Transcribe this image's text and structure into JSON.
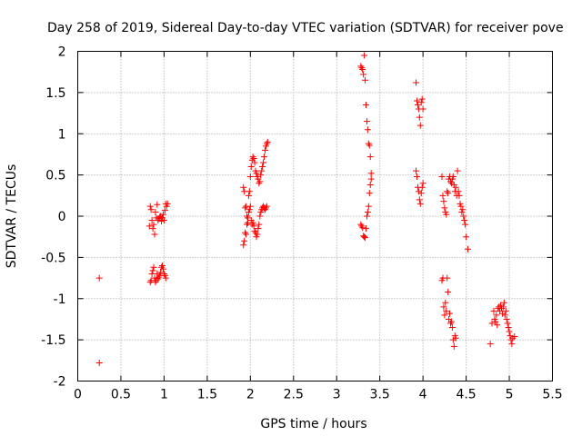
{
  "chart_data": {
    "type": "scatter",
    "title": "Day 258 of 2019, Sidereal Day-to-day VTEC variation (SDTVAR) for receiver pove",
    "xlabel": "GPS time / hours",
    "ylabel": "SDTVAR / TECUs",
    "xlim": [
      0,
      5.5
    ],
    "ylim": [
      -2,
      2
    ],
    "xticks": [
      0,
      0.5,
      1,
      1.5,
      2,
      2.5,
      3,
      3.5,
      4,
      4.5,
      5,
      5.5
    ],
    "xtick_labels": [
      "0",
      "0.5",
      "1",
      "1.5",
      "2",
      "2.5",
      "3",
      "3.5",
      "4",
      "4.5",
      "5",
      "5.5"
    ],
    "yticks": [
      -2,
      -1.5,
      -1,
      -0.5,
      0,
      0.5,
      1,
      1.5,
      2
    ],
    "ytick_labels": [
      "-2",
      "-1.5",
      "-1",
      "-0.5",
      "0",
      "0.5",
      "1",
      "1.5",
      "2"
    ],
    "grid": true,
    "marker": "+",
    "series": [
      {
        "name": "SDTVAR",
        "color": "#ff0000",
        "points": [
          [
            0.25,
            -0.75
          ],
          [
            0.25,
            -1.78
          ],
          [
            0.83,
            -0.12
          ],
          [
            0.84,
            0.12
          ],
          [
            0.85,
            0.08
          ],
          [
            0.86,
            -0.05
          ],
          [
            0.87,
            -0.15
          ],
          [
            0.88,
            -0.1
          ],
          [
            0.89,
            -0.22
          ],
          [
            0.9,
            0.05
          ],
          [
            0.91,
            -0.02
          ],
          [
            0.92,
            0.14
          ],
          [
            0.93,
            -0.05
          ],
          [
            0.94,
            -0.03
          ],
          [
            0.95,
            -0.01
          ],
          [
            0.96,
            0.0
          ],
          [
            0.97,
            -0.06
          ],
          [
            0.98,
            -0.02
          ],
          [
            0.99,
            0.02
          ],
          [
            1.0,
            -0.05
          ],
          [
            1.01,
            0.07
          ],
          [
            1.02,
            0.15
          ],
          [
            1.03,
            0.12
          ],
          [
            1.04,
            0.15
          ],
          [
            0.84,
            -0.8
          ],
          [
            0.85,
            -0.78
          ],
          [
            0.86,
            -0.7
          ],
          [
            0.87,
            -0.66
          ],
          [
            0.88,
            -0.62
          ],
          [
            0.89,
            -0.75
          ],
          [
            0.9,
            -0.8
          ],
          [
            0.91,
            -0.78
          ],
          [
            0.92,
            -0.7
          ],
          [
            0.93,
            -0.76
          ],
          [
            0.94,
            -0.74
          ],
          [
            0.95,
            -0.72
          ],
          [
            0.96,
            -0.68
          ],
          [
            0.97,
            -0.62
          ],
          [
            0.98,
            -0.6
          ],
          [
            0.99,
            -0.64
          ],
          [
            1.0,
            -0.7
          ],
          [
            1.01,
            -0.72
          ],
          [
            1.02,
            -0.75
          ],
          [
            1.92,
            0.35
          ],
          [
            1.93,
            0.3
          ],
          [
            1.94,
            0.1
          ],
          [
            1.95,
            0.12
          ],
          [
            1.96,
            0.0
          ],
          [
            1.97,
            -0.08
          ],
          [
            1.98,
            0.25
          ],
          [
            1.99,
            0.3
          ],
          [
            2.0,
            0.48
          ],
          [
            2.01,
            0.6
          ],
          [
            2.02,
            0.68
          ],
          [
            2.03,
            0.72
          ],
          [
            2.04,
            0.7
          ],
          [
            2.05,
            0.65
          ],
          [
            2.06,
            0.55
          ],
          [
            2.07,
            0.52
          ],
          [
            2.08,
            0.48
          ],
          [
            2.09,
            0.45
          ],
          [
            2.1,
            0.4
          ],
          [
            2.11,
            0.42
          ],
          [
            2.12,
            0.5
          ],
          [
            2.13,
            0.55
          ],
          [
            2.14,
            0.6
          ],
          [
            2.15,
            0.65
          ],
          [
            2.16,
            0.72
          ],
          [
            2.17,
            0.8
          ],
          [
            2.18,
            0.85
          ],
          [
            2.19,
            0.88
          ],
          [
            2.2,
            0.9
          ],
          [
            1.92,
            -0.35
          ],
          [
            1.93,
            -0.3
          ],
          [
            1.94,
            -0.2
          ],
          [
            1.95,
            -0.22
          ],
          [
            1.96,
            -0.1
          ],
          [
            1.97,
            -0.02
          ],
          [
            1.98,
            0.05
          ],
          [
            1.99,
            0.08
          ],
          [
            2.0,
            0.12
          ],
          [
            2.01,
            -0.05
          ],
          [
            2.02,
            -0.1
          ],
          [
            2.03,
            -0.08
          ],
          [
            2.04,
            -0.12
          ],
          [
            2.05,
            -0.18
          ],
          [
            2.06,
            -0.2
          ],
          [
            2.07,
            -0.25
          ],
          [
            2.08,
            -0.22
          ],
          [
            2.09,
            -0.15
          ],
          [
            2.1,
            -0.1
          ],
          [
            2.11,
            0.0
          ],
          [
            2.12,
            0.05
          ],
          [
            2.13,
            0.08
          ],
          [
            2.14,
            0.1
          ],
          [
            2.15,
            0.12
          ],
          [
            2.16,
            0.1
          ],
          [
            2.17,
            0.08
          ],
          [
            2.18,
            0.1
          ],
          [
            2.19,
            0.12
          ],
          [
            3.28,
            1.82
          ],
          [
            3.29,
            1.8
          ],
          [
            3.3,
            1.78
          ],
          [
            3.31,
            1.72
          ],
          [
            3.32,
            1.95
          ],
          [
            3.33,
            1.65
          ],
          [
            3.34,
            1.35
          ],
          [
            3.35,
            1.15
          ],
          [
            3.36,
            1.05
          ],
          [
            3.37,
            0.88
          ],
          [
            3.38,
            0.86
          ],
          [
            3.39,
            0.72
          ],
          [
            3.4,
            0.52
          ],
          [
            3.28,
            -0.1
          ],
          [
            3.29,
            -0.12
          ],
          [
            3.3,
            -0.14
          ],
          [
            3.31,
            -0.24
          ],
          [
            3.32,
            -0.25
          ],
          [
            3.33,
            -0.26
          ],
          [
            3.34,
            -0.15
          ],
          [
            3.35,
            0.0
          ],
          [
            3.36,
            0.05
          ],
          [
            3.37,
            0.12
          ],
          [
            3.38,
            0.28
          ],
          [
            3.39,
            0.38
          ],
          [
            3.4,
            0.45
          ],
          [
            3.92,
            1.62
          ],
          [
            3.93,
            1.4
          ],
          [
            3.94,
            1.35
          ],
          [
            3.95,
            1.3
          ],
          [
            3.96,
            1.2
          ],
          [
            3.97,
            1.1
          ],
          [
            3.98,
            1.38
          ],
          [
            3.99,
            1.42
          ],
          [
            4.0,
            1.3
          ],
          [
            3.92,
            0.55
          ],
          [
            3.93,
            0.48
          ],
          [
            3.94,
            0.35
          ],
          [
            3.95,
            0.3
          ],
          [
            3.96,
            0.2
          ],
          [
            3.97,
            0.15
          ],
          [
            3.98,
            0.28
          ],
          [
            3.99,
            0.35
          ],
          [
            4.0,
            0.4
          ],
          [
            4.22,
            0.48
          ],
          [
            4.23,
            0.25
          ],
          [
            4.24,
            0.18
          ],
          [
            4.25,
            0.1
          ],
          [
            4.26,
            0.05
          ],
          [
            4.27,
            0.02
          ],
          [
            4.28,
            0.3
          ],
          [
            4.29,
            0.28
          ],
          [
            4.3,
            0.45
          ],
          [
            4.31,
            0.48
          ],
          [
            4.32,
            0.42
          ],
          [
            4.33,
            0.4
          ],
          [
            4.34,
            0.45
          ],
          [
            4.35,
            0.48
          ],
          [
            4.36,
            0.38
          ],
          [
            4.37,
            0.3
          ],
          [
            4.38,
            0.35
          ],
          [
            4.39,
            0.25
          ],
          [
            4.4,
            0.55
          ],
          [
            4.41,
            0.3
          ],
          [
            4.42,
            0.25
          ],
          [
            4.43,
            0.15
          ],
          [
            4.44,
            0.12
          ],
          [
            4.45,
            0.05
          ],
          [
            4.46,
            0.08
          ],
          [
            4.47,
            0.0
          ],
          [
            4.48,
            -0.05
          ],
          [
            4.49,
            -0.1
          ],
          [
            4.5,
            -0.25
          ],
          [
            4.52,
            -0.4
          ],
          [
            4.22,
            -0.78
          ],
          [
            4.23,
            -0.75
          ],
          [
            4.24,
            -1.1
          ],
          [
            4.25,
            -1.2
          ],
          [
            4.26,
            -1.05
          ],
          [
            4.27,
            -1.15
          ],
          [
            4.28,
            -0.75
          ],
          [
            4.29,
            -0.92
          ],
          [
            4.3,
            -1.25
          ],
          [
            4.31,
            -1.18
          ],
          [
            4.32,
            -1.3
          ],
          [
            4.33,
            -1.28
          ],
          [
            4.34,
            -1.35
          ],
          [
            4.35,
            -1.5
          ],
          [
            4.36,
            -1.58
          ],
          [
            4.37,
            -1.45
          ],
          [
            4.38,
            -1.48
          ],
          [
            4.78,
            -1.55
          ],
          [
            4.8,
            -1.3
          ],
          [
            4.82,
            -1.15
          ],
          [
            4.83,
            -1.25
          ],
          [
            4.84,
            -1.28
          ],
          [
            4.85,
            -1.2
          ],
          [
            4.86,
            -1.32
          ],
          [
            4.87,
            -1.12
          ],
          [
            4.88,
            -1.1
          ],
          [
            4.89,
            -1.15
          ],
          [
            4.9,
            -1.08
          ],
          [
            4.91,
            -1.12
          ],
          [
            4.92,
            -1.18
          ],
          [
            4.93,
            -1.1
          ],
          [
            4.94,
            -1.05
          ],
          [
            4.95,
            -1.2
          ],
          [
            4.96,
            -1.15
          ],
          [
            4.97,
            -1.25
          ],
          [
            4.98,
            -1.3
          ],
          [
            4.99,
            -1.35
          ],
          [
            5.0,
            -1.4
          ],
          [
            5.01,
            -1.45
          ],
          [
            5.02,
            -1.5
          ],
          [
            5.03,
            -1.55
          ],
          [
            5.04,
            -1.48
          ],
          [
            5.06,
            -1.46
          ]
        ]
      }
    ]
  }
}
